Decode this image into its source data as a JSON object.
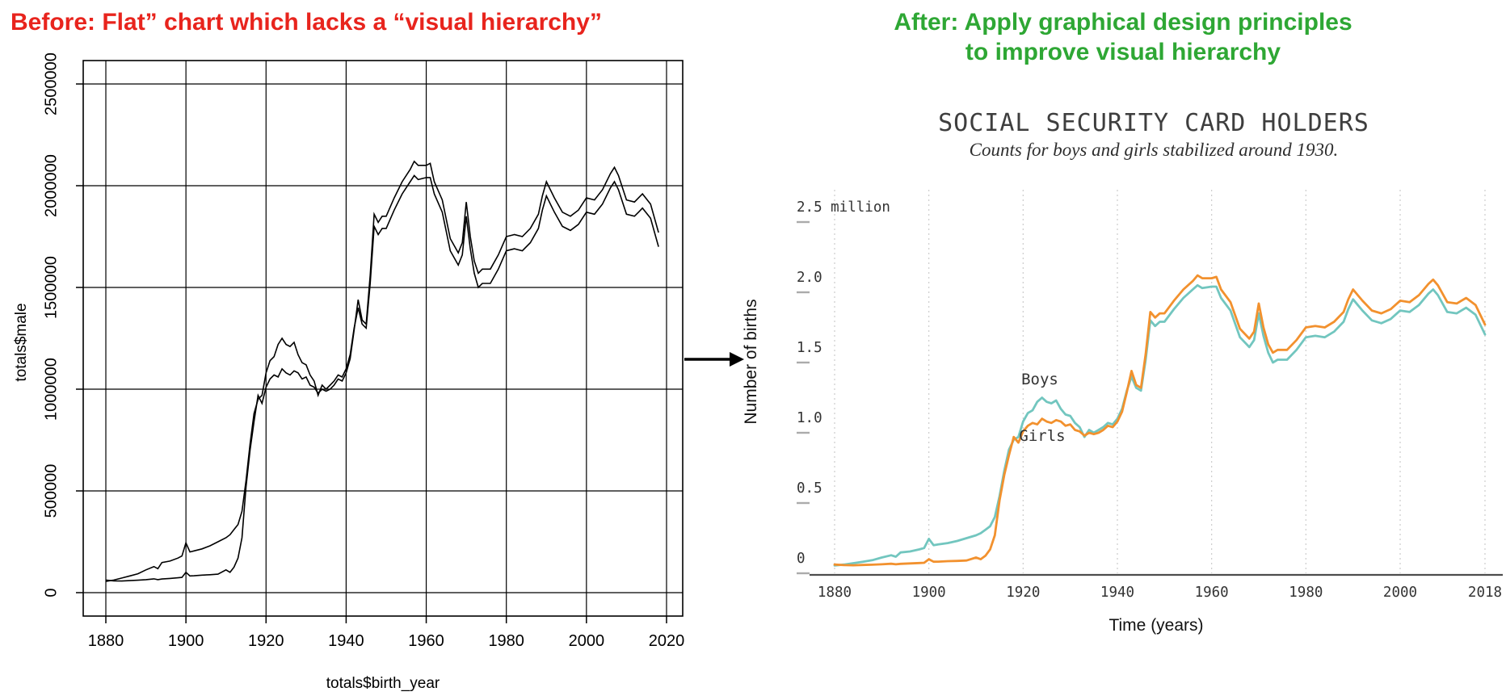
{
  "left_panel": {
    "header": {
      "text": "Before: Flat” chart which lacks a “visual hierarchy”",
      "color": "#e8241d"
    },
    "chart": {
      "ylabel": "totals$male",
      "xlabel": "totals$birth_year",
      "ytick_labels": [
        "0",
        "500000",
        "1000000",
        "1500000",
        "2000000",
        "2500000"
      ],
      "xtick_labels": [
        "1880",
        "1900",
        "1920",
        "1940",
        "1960",
        "1980",
        "2000",
        "2020"
      ],
      "line_color": "#000000",
      "grid_color": "#000000"
    }
  },
  "arrow": {
    "color": "#000000"
  },
  "right_panel": {
    "header": {
      "line1": "After: Apply graphical design principles",
      "line2": "to improve visual hierarchy",
      "color": "#2ea734"
    },
    "chart": {
      "title": "SOCIAL SECURITY CARD HOLDERS",
      "subtitle": "Counts for boys and girls stabilized around 1930.",
      "ylabel": "Number of births",
      "xlabel": "Time (years)",
      "ytick_labels": [
        "0",
        "0.5",
        "1.0",
        "1.5",
        "2.0",
        "2.5 million"
      ],
      "xtick_labels": [
        "1880",
        "1900",
        "1920",
        "1940",
        "1960",
        "1980",
        "2000",
        "2018"
      ],
      "boys_label": "Boys",
      "girls_label": "Girls",
      "boys_color": "#72c6bf",
      "girls_color": "#f2912e",
      "grid_color": "#cccccc",
      "axis_color": "#4d4d4d",
      "tick_dash_color": "#ababab",
      "text_color": "#333333"
    }
  },
  "chart_data": [
    {
      "type": "line",
      "title": "",
      "xlabel": "totals$birth_year",
      "ylabel": "totals$male",
      "xticks": [
        1880,
        1900,
        1920,
        1940,
        1960,
        1980,
        2000,
        2020
      ],
      "yticks": [
        0,
        500000,
        1000000,
        1500000,
        2000000,
        2500000
      ],
      "xlim": [
        1874,
        2024
      ],
      "ylim": [
        0,
        2730000
      ],
      "grid": true,
      "legend": "none",
      "line_color": "#000000",
      "note": "Same two series as the After chart; values here are raw counts = series values x 1,000,000, both lines drawn in black"
    },
    {
      "type": "line",
      "title": "SOCIAL SECURITY CARD HOLDERS",
      "subtitle": "Counts for boys and girls stabilized around 1930.",
      "xlabel": "Time (years)",
      "ylabel": "Number of births",
      "unit": "millions",
      "xticks": [
        1880,
        1900,
        1920,
        1940,
        1960,
        1980,
        2000,
        2018
      ],
      "yticks": [
        0,
        0.5,
        1.0,
        1.5,
        2.0,
        2.5
      ],
      "xlim": [
        1880,
        2018
      ],
      "ylim": [
        0,
        2.78
      ],
      "grid": "vertical-dotted",
      "legend": "inline-labels",
      "x": [
        1880,
        1882,
        1884,
        1886,
        1888,
        1890,
        1892,
        1893,
        1894,
        1896,
        1898,
        1899,
        1900,
        1901,
        1902,
        1904,
        1906,
        1908,
        1910,
        1911,
        1912,
        1913,
        1914,
        1915,
        1916,
        1917,
        1918,
        1919,
        1920,
        1921,
        1922,
        1923,
        1924,
        1925,
        1926,
        1927,
        1928,
        1929,
        1930,
        1931,
        1932,
        1933,
        1934,
        1935,
        1936,
        1937,
        1938,
        1939,
        1940,
        1941,
        1942,
        1943,
        1944,
        1945,
        1946,
        1947,
        1948,
        1949,
        1950,
        1952,
        1954,
        1956,
        1957,
        1958,
        1960,
        1961,
        1962,
        1964,
        1966,
        1968,
        1969,
        1970,
        1971,
        1972,
        1973,
        1974,
        1976,
        1978,
        1980,
        1982,
        1984,
        1986,
        1988,
        1989,
        1990,
        1991,
        1992,
        1994,
        1996,
        1998,
        2000,
        2002,
        2004,
        2006,
        2007,
        2008,
        2010,
        2012,
        2013,
        2014,
        2016,
        2018
      ],
      "series": [
        {
          "name": "Boys",
          "color": "#72c6bf",
          "values": [
            0.055,
            0.062,
            0.072,
            0.082,
            0.093,
            0.112,
            0.128,
            0.118,
            0.148,
            0.155,
            0.17,
            0.18,
            0.245,
            0.2,
            0.205,
            0.215,
            0.23,
            0.25,
            0.27,
            0.285,
            0.31,
            0.335,
            0.4,
            0.55,
            0.73,
            0.88,
            0.95,
            0.97,
            1.08,
            1.14,
            1.16,
            1.22,
            1.25,
            1.22,
            1.21,
            1.23,
            1.17,
            1.13,
            1.12,
            1.07,
            1.04,
            0.97,
            1.02,
            1.0,
            1.02,
            1.04,
            1.07,
            1.06,
            1.1,
            1.17,
            1.3,
            1.4,
            1.32,
            1.3,
            1.52,
            1.8,
            1.76,
            1.79,
            1.79,
            1.88,
            1.96,
            2.02,
            2.05,
            2.03,
            2.04,
            2.04,
            1.96,
            1.87,
            1.68,
            1.61,
            1.66,
            1.85,
            1.69,
            1.57,
            1.5,
            1.52,
            1.52,
            1.59,
            1.68,
            1.69,
            1.68,
            1.72,
            1.79,
            1.88,
            1.95,
            1.91,
            1.87,
            1.8,
            1.78,
            1.81,
            1.87,
            1.86,
            1.91,
            1.99,
            2.02,
            1.98,
            1.86,
            1.85,
            1.87,
            1.89,
            1.84,
            1.7
          ]
        },
        {
          "name": "Girls",
          "color": "#f2912e",
          "values": [
            0.062,
            0.058,
            0.057,
            0.059,
            0.061,
            0.064,
            0.068,
            0.064,
            0.067,
            0.07,
            0.073,
            0.075,
            0.1,
            0.082,
            0.083,
            0.086,
            0.088,
            0.091,
            0.112,
            0.1,
            0.125,
            0.17,
            0.27,
            0.52,
            0.7,
            0.84,
            0.97,
            0.93,
            1.01,
            1.05,
            1.07,
            1.06,
            1.1,
            1.08,
            1.07,
            1.09,
            1.08,
            1.05,
            1.06,
            1.02,
            1.01,
            0.98,
            1.0,
            0.99,
            1.0,
            1.02,
            1.05,
            1.04,
            1.08,
            1.15,
            1.29,
            1.44,
            1.34,
            1.32,
            1.56,
            1.86,
            1.82,
            1.85,
            1.85,
            1.94,
            2.02,
            2.08,
            2.12,
            2.1,
            2.1,
            2.11,
            2.02,
            1.93,
            1.74,
            1.67,
            1.72,
            1.92,
            1.75,
            1.63,
            1.57,
            1.59,
            1.59,
            1.66,
            1.75,
            1.76,
            1.75,
            1.79,
            1.86,
            1.95,
            2.02,
            1.98,
            1.94,
            1.87,
            1.85,
            1.88,
            1.94,
            1.93,
            1.98,
            2.06,
            2.09,
            2.05,
            1.93,
            1.92,
            1.94,
            1.96,
            1.91,
            1.77
          ]
        }
      ]
    }
  ]
}
